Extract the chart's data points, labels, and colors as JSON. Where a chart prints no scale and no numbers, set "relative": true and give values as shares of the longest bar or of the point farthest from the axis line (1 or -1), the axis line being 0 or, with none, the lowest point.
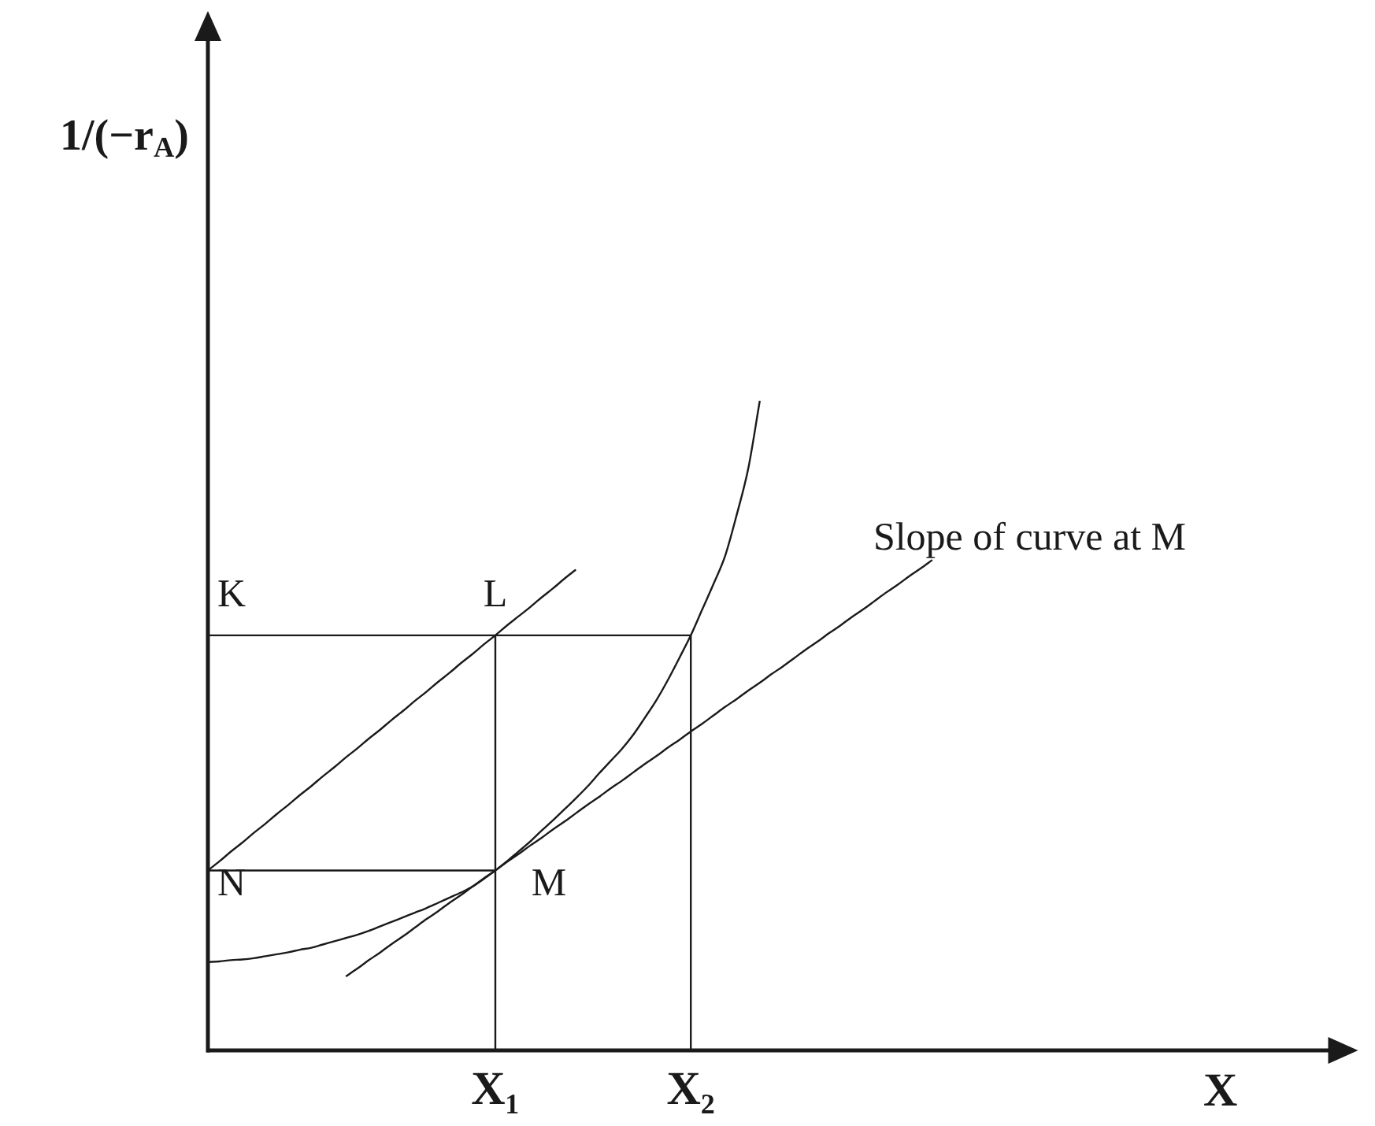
{
  "chart_data": {
    "type": "line",
    "xlabel": "X",
    "relative": true,
    "marker": "none",
    "line_style": "solid",
    "categories": [
      null,
      null,
      null,
      null,
      null,
      null,
      null,
      null,
      null,
      null,
      null,
      null,
      null,
      null,
      null,
      null,
      null,
      null,
      null,
      null,
      null,
      null,
      null,
      null,
      null,
      "X₁",
      null,
      null,
      null,
      null,
      null,
      null,
      null,
      null,
      null,
      null,
      null,
      null,
      null,
      null,
      null,
      null,
      "X₂",
      null,
      null,
      null,
      null,
      null,
      null,
      null,
      null,
      null,
      null,
      null,
      null,
      null,
      null,
      null,
      null,
      null,
      null,
      null,
      null,
      null,
      null,
      null,
      null,
      null,
      null,
      null,
      null,
      null,
      null,
      null,
      null,
      null,
      null,
      null,
      null,
      null,
      null,
      null,
      null,
      null,
      null,
      null,
      null,
      null,
      null,
      null,
      null,
      null,
      null,
      null,
      null,
      null,
      null,
      null,
      null,
      null,
      null
    ],
    "series": [
      {
        "color": "#1a1a1a",
        "values": [
          0.136,
          0.137,
          0.139,
          0.14,
          0.142,
          0.145,
          0.148,
          0.151,
          0.155,
          0.158,
          0.163,
          0.168,
          0.173,
          0.178,
          0.184,
          0.191,
          0.198,
          0.205,
          0.212,
          0.219,
          0.227,
          0.235,
          0.243,
          0.252,
          0.265,
          0.277,
          0.291,
          0.306,
          0.321,
          0.338,
          0.354,
          0.371,
          0.388,
          0.406,
          0.426,
          0.445,
          0.464,
          0.486,
          0.512,
          0.539,
          0.57,
          0.604,
          0.639,
          0.679,
          0.719,
          0.762,
          0.825,
          0.896,
          1,
          null,
          null,
          null,
          null,
          null,
          null,
          null,
          null,
          null,
          null,
          null,
          null,
          null,
          null,
          null,
          null,
          null,
          null,
          null,
          null,
          null,
          null,
          null,
          null,
          null,
          null,
          null,
          null,
          null,
          null,
          null,
          null,
          null,
          null,
          null,
          null,
          null,
          null,
          null,
          null,
          null,
          null,
          null,
          null,
          null,
          null,
          null,
          null,
          null,
          null,
          null,
          null
        ]
      },
      {
        "color": "#1a1a1a",
        "values": [
          0.639,
          0.639,
          0.639,
          0.639,
          0.639,
          0.639,
          0.639,
          0.639,
          0.639,
          0.639,
          0.639,
          0.639,
          0.639,
          0.639,
          0.639,
          0.639,
          0.639,
          0.639,
          0.639,
          0.639,
          0.639,
          0.639,
          0.639,
          0.639,
          0.639,
          0.639,
          0.639,
          0.639,
          0.639,
          0.639,
          0.639,
          0.639,
          0.639,
          0.639,
          0.639,
          0.639,
          0.639,
          0.639,
          0.639,
          0.639,
          0.639,
          0.639,
          0.639,
          null,
          null,
          null,
          null,
          null,
          null,
          null,
          null,
          null,
          null,
          null,
          null,
          null,
          null,
          null,
          null,
          null,
          null,
          null,
          null,
          null,
          null,
          null,
          null,
          null,
          null,
          null,
          null,
          null,
          null,
          null,
          null,
          null,
          null,
          null,
          null,
          null,
          null,
          null,
          null,
          null,
          null,
          null,
          null,
          null,
          null,
          null,
          null,
          null,
          null,
          null,
          null,
          null,
          null,
          null,
          null,
          null,
          null
        ]
      },
      {
        "color": "#1a1a1a",
        "x": [
          "X₂",
          "X₂"
        ],
        "values": [
          0,
          0.639
        ]
      },
      {
        "color": "#1a1a1a",
        "x": [
          "X₁",
          "X₁"
        ],
        "values": [
          0,
          0.639
        ]
      },
      {
        "color": "#1a1a1a",
        "values": [
          0.277,
          0.277,
          0.277,
          0.277,
          0.277,
          0.277,
          0.277,
          0.277,
          0.277,
          0.277,
          0.277,
          0.277,
          0.277,
          0.277,
          0.277,
          0.277,
          0.277,
          0.277,
          0.277,
          0.277,
          0.277,
          0.277,
          0.277,
          0.277,
          0.277,
          0.277,
          null,
          null,
          null,
          null,
          null,
          null,
          null,
          null,
          null,
          null,
          null,
          null,
          null,
          null,
          null,
          null,
          null,
          null,
          null,
          null,
          null,
          null,
          null,
          null,
          null,
          null,
          null,
          null,
          null,
          null,
          null,
          null,
          null,
          null,
          null,
          null,
          null,
          null,
          null,
          null,
          null,
          null,
          null,
          null,
          null,
          null,
          null,
          null,
          null,
          null,
          null,
          null,
          null,
          null,
          null,
          null,
          null,
          null,
          null,
          null,
          null,
          null,
          null,
          null,
          null,
          null,
          null,
          null,
          null,
          null,
          null,
          null,
          null,
          null,
          null
        ]
      },
      {
        "color": "#1a1a1a",
        "values": [
          0.277,
          0.291,
          0.306,
          0.32,
          0.335,
          0.349,
          0.364,
          0.378,
          0.393,
          0.407,
          0.422,
          0.436,
          0.451,
          0.465,
          0.48,
          0.494,
          0.509,
          0.523,
          0.538,
          0.552,
          0.567,
          0.581,
          0.596,
          0.61,
          0.625,
          0.639,
          0.654,
          0.668,
          0.682,
          0.697,
          0.711,
          0.726,
          0.74,
          null,
          null,
          null,
          null,
          null,
          null,
          null,
          null,
          null,
          null,
          null,
          null,
          null,
          null,
          null,
          null,
          null,
          null,
          null,
          null,
          null,
          null,
          null,
          null,
          null,
          null,
          null,
          null,
          null,
          null,
          null,
          null,
          null,
          null,
          null,
          null,
          null,
          null,
          null,
          null,
          null,
          null,
          null,
          null,
          null,
          null,
          null,
          null,
          null,
          null,
          null,
          null,
          null,
          null,
          null,
          null,
          null,
          null,
          null,
          null,
          null,
          null,
          null,
          null,
          null,
          null,
          null,
          null
        ]
      },
      {
        "color": "#1a1a1a",
        "values": [
          null,
          null,
          null,
          null,
          null,
          null,
          null,
          null,
          null,
          null,
          null,
          null,
          0.114,
          0.126,
          0.139,
          0.151,
          0.164,
          0.176,
          0.189,
          0.202,
          0.214,
          0.227,
          0.239,
          0.252,
          0.264,
          0.277,
          0.29,
          0.302,
          0.315,
          0.327,
          0.34,
          0.352,
          0.365,
          0.378,
          0.39,
          0.403,
          0.415,
          0.428,
          0.441,
          0.453,
          0.466,
          0.478,
          0.491,
          0.503,
          0.516,
          0.529,
          0.541,
          0.554,
          0.566,
          0.579,
          0.591,
          0.604,
          0.617,
          0.629,
          0.642,
          0.654,
          0.667,
          0.679,
          0.692,
          0.705,
          0.717,
          0.73,
          0.742,
          0.755,
          null,
          null,
          null,
          null,
          null,
          null,
          null,
          null,
          null,
          null,
          null,
          null,
          null,
          null,
          null,
          null,
          null,
          null,
          null,
          null,
          null,
          null,
          null,
          null,
          null,
          null,
          null,
          null,
          null,
          null,
          null,
          null,
          null,
          null,
          null,
          null,
          null
        ]
      }
    ],
    "annotations": [
      "1/(−r$_{A}$)",
      {
        "text": "K",
        "y": 0.639
      },
      {
        "text": "L",
        "x": "X₁",
        "y": 0.639
      },
      {
        "text": "N",
        "y": 0.277
      },
      {
        "text": "M",
        "x": "X₁",
        "y": 0.277
      },
      "Slope of curve at M"
    ]
  }
}
